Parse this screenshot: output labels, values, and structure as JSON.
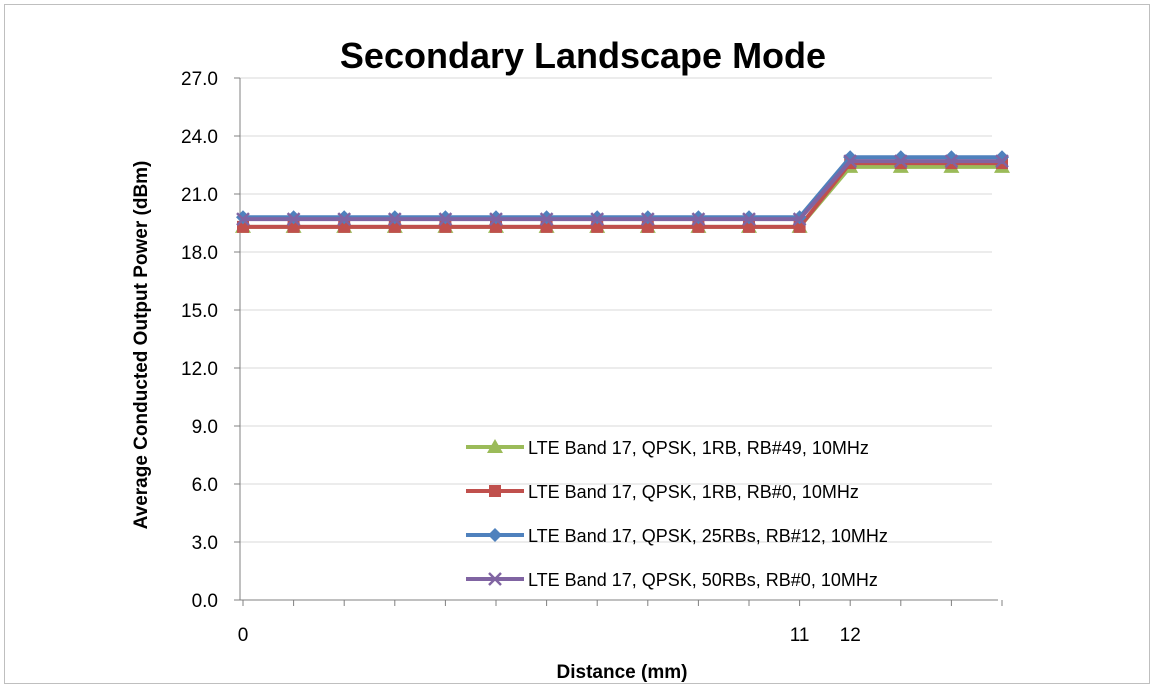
{
  "chart_data": {
    "type": "line",
    "title": "Secondary Landscape Mode",
    "xlabel": "Distance (mm)",
    "ylabel": "Average Conducted Output Power (dBm)",
    "ylim": [
      0,
      27
    ],
    "yticks": [
      "0.0",
      "3.0",
      "6.0",
      "9.0",
      "12.0",
      "15.0",
      "18.0",
      "21.0",
      "24.0",
      "27.0"
    ],
    "x_tick_labels": [
      "0",
      "11",
      "12"
    ],
    "x": [
      0,
      1,
      2,
      3,
      4,
      5,
      6,
      7,
      8,
      9,
      10,
      11,
      12,
      13,
      14,
      15
    ],
    "grid": "horizontal",
    "legend_position": "bottom-right inside plot",
    "series": [
      {
        "name": "LTE Band 17, QPSK, 1RB, RB#49, 10MHz",
        "color": "#9bbb59",
        "marker": "triangle",
        "values": [
          19.3,
          19.3,
          19.3,
          19.3,
          19.3,
          19.3,
          19.3,
          19.3,
          19.3,
          19.3,
          19.3,
          19.3,
          22.4,
          22.4,
          22.4,
          22.4
        ]
      },
      {
        "name": "LTE Band 17, QPSK, 1RB, RB#0, 10MHz",
        "color": "#c0504d",
        "marker": "square",
        "values": [
          19.3,
          19.3,
          19.3,
          19.3,
          19.3,
          19.3,
          19.3,
          19.3,
          19.3,
          19.3,
          19.3,
          19.3,
          22.6,
          22.6,
          22.6,
          22.6
        ]
      },
      {
        "name": "LTE Band 17, QPSK, 25RBs, RB#12, 10MHz",
        "color": "#4f81bd",
        "marker": "diamond",
        "values": [
          19.8,
          19.8,
          19.8,
          19.8,
          19.8,
          19.8,
          19.8,
          19.8,
          19.8,
          19.8,
          19.8,
          19.8,
          22.9,
          22.9,
          22.9,
          22.9
        ]
      },
      {
        "name": "LTE Band 17, QPSK, 50RBs, RB#0, 10MHz",
        "color": "#8064a2",
        "marker": "x",
        "values": [
          19.7,
          19.7,
          19.7,
          19.7,
          19.7,
          19.7,
          19.7,
          19.7,
          19.7,
          19.7,
          19.7,
          19.7,
          22.7,
          22.7,
          22.7,
          22.7
        ]
      }
    ]
  }
}
